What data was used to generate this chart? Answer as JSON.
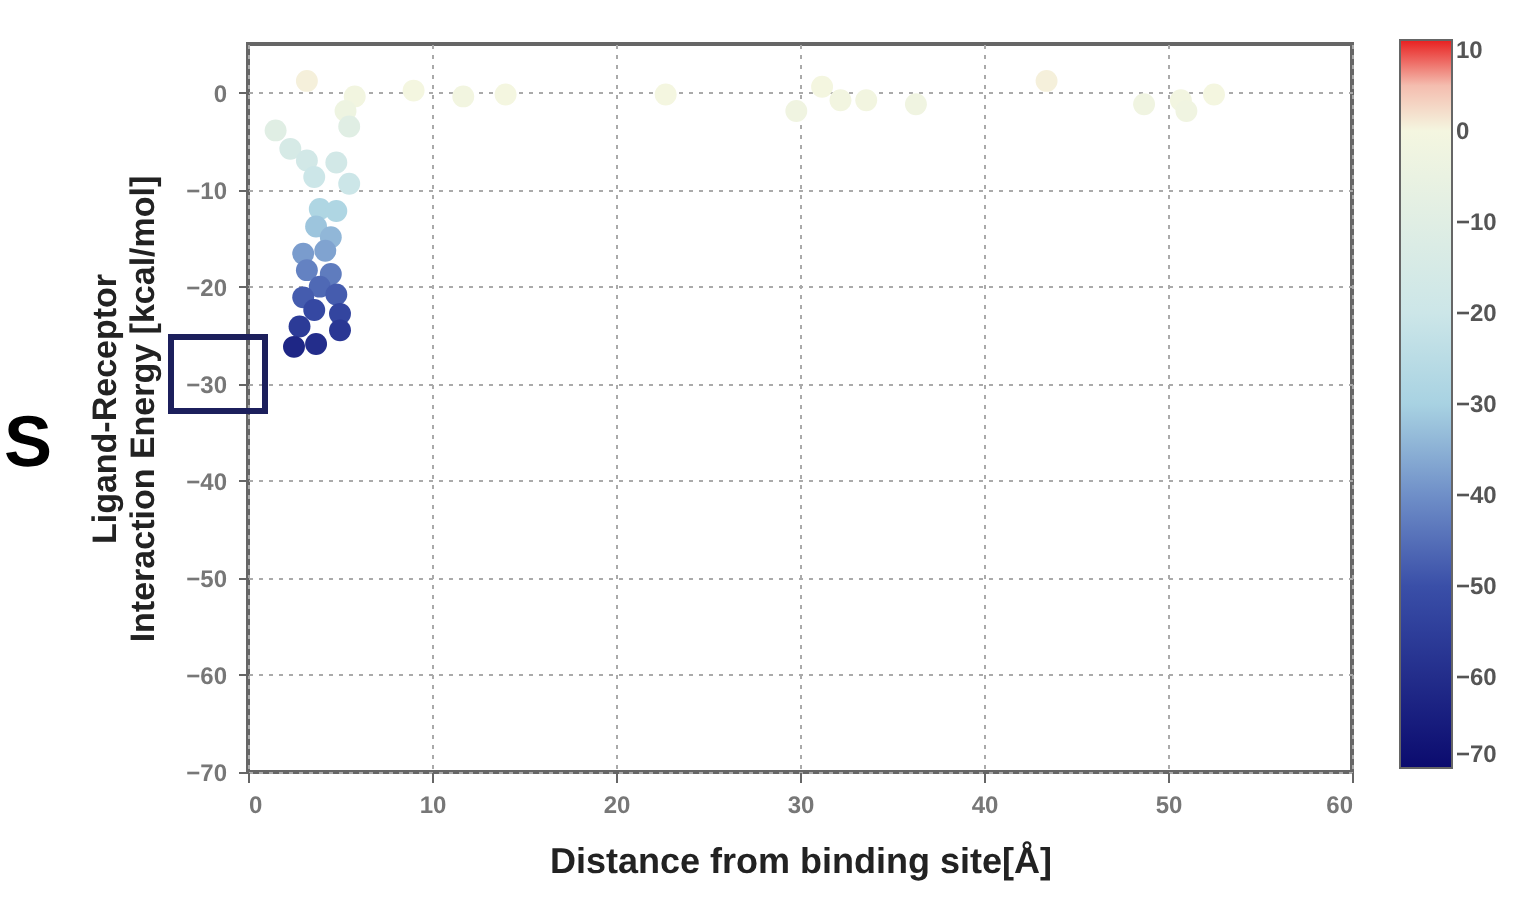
{
  "chart_data": {
    "type": "scatter",
    "xlabel": "Distance from binding site[Å]",
    "ylabel": "Ligand-Receptor\nInteraction Energy [kcal/mol]",
    "x": [
      3.2,
      5.8,
      5.3,
      9,
      11.7,
      14,
      1.5,
      5.5,
      2.3,
      3.2,
      4.8,
      3.6,
      5.5,
      3.9,
      4.8,
      3.7,
      4.5,
      3,
      4.2,
      3.2,
      4.5,
      3.9,
      4.8,
      3,
      3.6,
      5,
      2.8,
      5,
      2.5,
      3.7,
      22.7,
      29.8,
      31.2,
      32.2,
      33.6,
      36.3,
      43.4,
      48.7,
      50.7,
      51,
      52.5
    ],
    "values": [
      1.2,
      -0.4,
      -1.9,
      0.2,
      -0.4,
      -0.2,
      -3.9,
      -3.5,
      -5.8,
      -7,
      -7.2,
      -8.7,
      -9.4,
      -12,
      -12.2,
      -13.8,
      -14.9,
      -16.6,
      -16.3,
      -18.3,
      -18.7,
      -20,
      -20.8,
      -21.1,
      -22.4,
      -22.8,
      -24.1,
      -24.5,
      -26.2,
      -25.9,
      -0.2,
      -1.9,
      0.6,
      -0.8,
      -0.8,
      -1.2,
      1.2,
      -1.2,
      -0.8,
      -1.9,
      -0.2
    ],
    "cvalues": [
      1,
      -1,
      -3,
      0,
      -1,
      0,
      -10,
      -10,
      -15,
      -17,
      -17,
      -20,
      -20,
      -28,
      -28,
      -32,
      -34,
      -38,
      -37,
      -42,
      -43,
      -46,
      -48,
      -48,
      -52,
      -53,
      -56,
      -57,
      -62,
      -60,
      0,
      -2,
      0,
      -1,
      -1,
      -2,
      1,
      -2,
      -1,
      -2,
      0
    ],
    "xlim": [
      0,
      60
    ],
    "xticks": [
      0,
      10,
      20,
      30,
      40,
      50,
      60
    ],
    "ylim": [
      -70,
      5
    ],
    "yticks": [
      -70,
      -60,
      -50,
      -40,
      -30,
      -20,
      -10,
      0
    ],
    "clim": [
      -70,
      10
    ],
    "cticks": [
      -70,
      -60,
      -50,
      -40,
      -30,
      -20,
      -10,
      0,
      10
    ],
    "grid": true,
    "marker": "circle",
    "annotations": [
      "S"
    ]
  }
}
